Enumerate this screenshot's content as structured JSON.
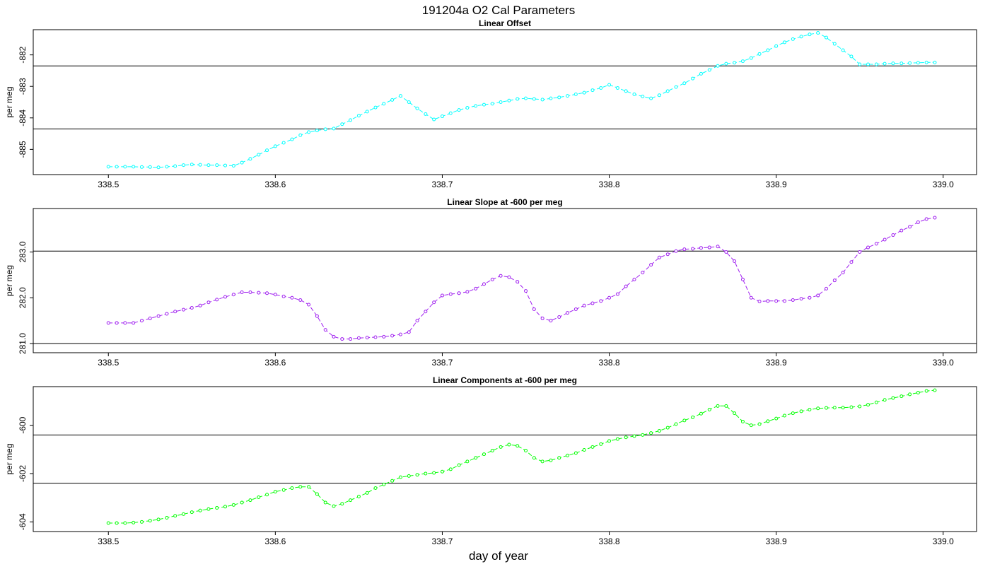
{
  "page": {
    "title": "191204a   O2 Cal Parameters",
    "xlabel": "day of year"
  },
  "chart_data": [
    {
      "type": "line",
      "title": "Linear Offset",
      "xlabel": "",
      "ylabel": "per meg",
      "color": "#00ffff",
      "xlim": [
        338.455,
        339.02
      ],
      "ylim": [
        -885.8,
        -881.2
      ],
      "xticks": [
        "338.5",
        "338.6",
        "338.7",
        "338.8",
        "338.9",
        "339.0"
      ],
      "yticks": [
        "-882",
        "-883",
        "-884",
        "-885"
      ],
      "ytick_values": [
        -882,
        -883,
        -884,
        -885
      ],
      "hlines": [
        -882.35,
        -884.35
      ],
      "x": [
        338.5,
        338.505,
        338.51,
        338.515,
        338.52,
        338.525,
        338.53,
        338.535,
        338.54,
        338.545,
        338.55,
        338.555,
        338.56,
        338.565,
        338.57,
        338.575,
        338.58,
        338.585,
        338.59,
        338.595,
        338.6,
        338.605,
        338.61,
        338.615,
        338.62,
        338.625,
        338.63,
        338.635,
        338.64,
        338.645,
        338.65,
        338.655,
        338.66,
        338.665,
        338.67,
        338.675,
        338.68,
        338.685,
        338.69,
        338.695,
        338.7,
        338.705,
        338.71,
        338.715,
        338.72,
        338.725,
        338.73,
        338.735,
        338.74,
        338.745,
        338.75,
        338.755,
        338.76,
        338.765,
        338.77,
        338.775,
        338.78,
        338.785,
        338.79,
        338.795,
        338.8,
        338.805,
        338.81,
        338.815,
        338.82,
        338.825,
        338.83,
        338.835,
        338.84,
        338.845,
        338.85,
        338.855,
        338.86,
        338.865,
        338.87,
        338.875,
        338.88,
        338.885,
        338.89,
        338.895,
        338.9,
        338.905,
        338.91,
        338.915,
        338.92,
        338.925,
        338.93,
        338.935,
        338.94,
        338.945,
        338.95,
        338.955,
        338.96,
        338.965,
        338.97,
        338.975,
        338.98,
        338.985,
        338.99,
        338.995
      ],
      "values": [
        -885.55,
        -885.55,
        -885.55,
        -885.55,
        -885.56,
        -885.56,
        -885.57,
        -885.55,
        -885.53,
        -885.5,
        -885.48,
        -885.49,
        -885.5,
        -885.5,
        -885.51,
        -885.52,
        -885.42,
        -885.3,
        -885.17,
        -885.03,
        -884.9,
        -884.79,
        -884.68,
        -884.55,
        -884.45,
        -884.4,
        -884.36,
        -884.34,
        -884.2,
        -884.07,
        -883.93,
        -883.8,
        -883.67,
        -883.55,
        -883.43,
        -883.3,
        -883.5,
        -883.7,
        -883.88,
        -884.05,
        -883.95,
        -883.85,
        -883.75,
        -883.68,
        -883.62,
        -883.58,
        -883.55,
        -883.5,
        -883.45,
        -883.4,
        -883.38,
        -883.4,
        -883.42,
        -883.38,
        -883.35,
        -883.3,
        -883.25,
        -883.2,
        -883.12,
        -883.05,
        -882.95,
        -883.05,
        -883.15,
        -883.25,
        -883.32,
        -883.38,
        -883.28,
        -883.15,
        -883.02,
        -882.9,
        -882.75,
        -882.6,
        -882.48,
        -882.35,
        -882.28,
        -882.25,
        -882.2,
        -882.1,
        -881.97,
        -881.85,
        -881.72,
        -881.6,
        -881.5,
        -881.42,
        -881.35,
        -881.3,
        -881.45,
        -881.65,
        -881.85,
        -882.05,
        -882.3,
        -882.3,
        -882.3,
        -882.28,
        -882.27,
        -882.27,
        -882.26,
        -882.25,
        -882.24,
        -882.24
      ]
    },
    {
      "type": "line",
      "title": "Linear Slope at -600 per meg",
      "xlabel": "",
      "ylabel": "per meg",
      "color": "#a020f0",
      "xlim": [
        338.455,
        339.02
      ],
      "ylim": [
        280.8,
        283.95
      ],
      "xticks": [
        "338.5",
        "338.6",
        "338.7",
        "338.8",
        "338.9",
        "339.0"
      ],
      "yticks": [
        "281.0",
        "282.0",
        "283.0"
      ],
      "ytick_values": [
        281.0,
        282.0,
        283.0
      ],
      "hlines": [
        283.02,
        281.0
      ],
      "x": [
        338.5,
        338.505,
        338.51,
        338.515,
        338.52,
        338.525,
        338.53,
        338.535,
        338.54,
        338.545,
        338.55,
        338.555,
        338.56,
        338.565,
        338.57,
        338.575,
        338.58,
        338.585,
        338.59,
        338.595,
        338.6,
        338.605,
        338.61,
        338.615,
        338.62,
        338.625,
        338.63,
        338.635,
        338.64,
        338.645,
        338.65,
        338.655,
        338.66,
        338.665,
        338.67,
        338.675,
        338.68,
        338.685,
        338.69,
        338.695,
        338.7,
        338.705,
        338.71,
        338.715,
        338.72,
        338.725,
        338.73,
        338.735,
        338.74,
        338.745,
        338.75,
        338.755,
        338.76,
        338.765,
        338.77,
        338.775,
        338.78,
        338.785,
        338.79,
        338.795,
        338.8,
        338.805,
        338.81,
        338.815,
        338.82,
        338.825,
        338.83,
        338.835,
        338.84,
        338.845,
        338.85,
        338.855,
        338.86,
        338.865,
        338.87,
        338.875,
        338.88,
        338.885,
        338.89,
        338.895,
        338.9,
        338.905,
        338.91,
        338.915,
        338.92,
        338.925,
        338.93,
        338.935,
        338.94,
        338.945,
        338.95,
        338.955,
        338.96,
        338.965,
        338.97,
        338.975,
        338.98,
        338.985,
        338.99,
        338.995
      ],
      "values": [
        281.45,
        281.45,
        281.45,
        281.45,
        281.5,
        281.55,
        281.6,
        281.65,
        281.7,
        281.74,
        281.78,
        281.83,
        281.9,
        281.96,
        282.02,
        282.07,
        282.12,
        282.12,
        282.11,
        282.1,
        282.07,
        282.03,
        282.0,
        281.95,
        281.85,
        281.6,
        281.3,
        281.15,
        281.1,
        281.1,
        281.12,
        281.13,
        281.14,
        281.15,
        281.17,
        281.2,
        281.25,
        281.5,
        281.7,
        281.9,
        282.05,
        282.08,
        282.1,
        282.13,
        282.2,
        282.3,
        282.4,
        282.48,
        282.45,
        282.35,
        282.15,
        281.75,
        281.55,
        281.5,
        281.58,
        281.67,
        281.75,
        281.83,
        281.88,
        281.93,
        282.0,
        282.08,
        282.25,
        282.4,
        282.55,
        282.72,
        282.88,
        282.95,
        283.02,
        283.06,
        283.07,
        283.09,
        283.1,
        283.12,
        283.0,
        282.8,
        282.4,
        282.0,
        281.92,
        281.93,
        281.93,
        281.93,
        281.95,
        281.98,
        282.0,
        282.05,
        282.2,
        282.38,
        282.55,
        282.78,
        283.0,
        283.1,
        283.18,
        283.27,
        283.37,
        283.47,
        283.55,
        283.65,
        283.72,
        283.75
      ]
    },
    {
      "type": "line",
      "title": "Linear Components at -600 per meg",
      "xlabel": "",
      "ylabel": "per meg",
      "color": "#00ff00",
      "xlim": [
        338.455,
        339.02
      ],
      "ylim": [
        -604.4,
        -598.4
      ],
      "xticks": [
        "338.5",
        "338.6",
        "338.7",
        "338.8",
        "338.9",
        "339.0"
      ],
      "yticks": [
        "-600",
        "-602",
        "-604"
      ],
      "ytick_values": [
        -600,
        -602,
        -604
      ],
      "hlines": [
        -600.4,
        -602.4
      ],
      "x": [
        338.5,
        338.505,
        338.51,
        338.515,
        338.52,
        338.525,
        338.53,
        338.535,
        338.54,
        338.545,
        338.55,
        338.555,
        338.56,
        338.565,
        338.57,
        338.575,
        338.58,
        338.585,
        338.59,
        338.595,
        338.6,
        338.605,
        338.61,
        338.615,
        338.62,
        338.625,
        338.63,
        338.635,
        338.64,
        338.645,
        338.65,
        338.655,
        338.66,
        338.665,
        338.67,
        338.675,
        338.68,
        338.685,
        338.69,
        338.695,
        338.7,
        338.705,
        338.71,
        338.715,
        338.72,
        338.725,
        338.73,
        338.735,
        338.74,
        338.745,
        338.75,
        338.755,
        338.76,
        338.765,
        338.77,
        338.775,
        338.78,
        338.785,
        338.79,
        338.795,
        338.8,
        338.805,
        338.81,
        338.815,
        338.82,
        338.825,
        338.83,
        338.835,
        338.84,
        338.845,
        338.85,
        338.855,
        338.86,
        338.865,
        338.87,
        338.875,
        338.88,
        338.885,
        338.89,
        338.895,
        338.9,
        338.905,
        338.91,
        338.915,
        338.92,
        338.925,
        338.93,
        338.935,
        338.94,
        338.945,
        338.95,
        338.955,
        338.96,
        338.965,
        338.97,
        338.975,
        338.98,
        338.985,
        338.99,
        338.995
      ],
      "values": [
        -604.05,
        -604.05,
        -604.05,
        -604.03,
        -604.0,
        -603.95,
        -603.9,
        -603.83,
        -603.75,
        -603.68,
        -603.6,
        -603.53,
        -603.47,
        -603.42,
        -603.37,
        -603.3,
        -603.2,
        -603.1,
        -602.98,
        -602.87,
        -602.75,
        -602.68,
        -602.6,
        -602.55,
        -602.55,
        -602.85,
        -603.2,
        -603.35,
        -603.25,
        -603.1,
        -602.95,
        -602.8,
        -602.6,
        -602.45,
        -602.3,
        -602.15,
        -602.1,
        -602.05,
        -602.0,
        -601.97,
        -601.92,
        -601.82,
        -601.65,
        -601.5,
        -601.35,
        -601.2,
        -601.05,
        -600.9,
        -600.8,
        -600.85,
        -601.05,
        -601.35,
        -601.5,
        -601.45,
        -601.35,
        -601.25,
        -601.15,
        -601.02,
        -600.9,
        -600.78,
        -600.65,
        -600.57,
        -600.5,
        -600.45,
        -600.4,
        -600.32,
        -600.23,
        -600.1,
        -599.95,
        -599.8,
        -599.67,
        -599.52,
        -599.35,
        -599.2,
        -599.2,
        -599.5,
        -599.85,
        -600.0,
        -599.95,
        -599.83,
        -599.72,
        -599.6,
        -599.5,
        -599.42,
        -599.35,
        -599.3,
        -599.28,
        -599.27,
        -599.27,
        -599.25,
        -599.22,
        -599.15,
        -599.05,
        -598.95,
        -598.87,
        -598.8,
        -598.72,
        -598.65,
        -598.58,
        -598.55
      ]
    }
  ]
}
